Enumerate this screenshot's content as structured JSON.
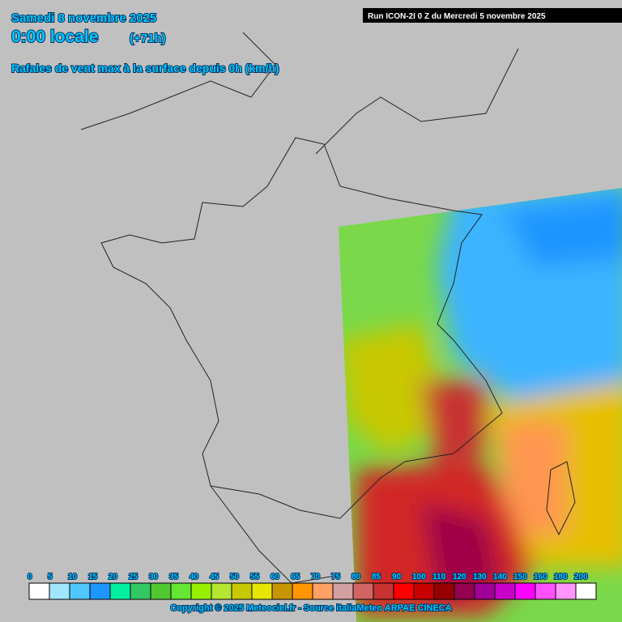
{
  "header": {
    "date": "Samedi 8 novembre 2025",
    "time": "0:00 locale",
    "lead": "(+71h)",
    "subtitle": "Rafales de vent max à la surface depuis 0h (km/h)",
    "run": "Run ICON-2I 0 Z du Mercredi 5 novembre 2025"
  },
  "legend": {
    "items": [
      {
        "label": "0",
        "color": "#ffffff"
      },
      {
        "label": "5",
        "color": "#a0e6ff"
      },
      {
        "label": "10",
        "color": "#50c8ff"
      },
      {
        "label": "15",
        "color": "#1e96ff"
      },
      {
        "label": "20",
        "color": "#00f0a0"
      },
      {
        "label": "25",
        "color": "#32c864"
      },
      {
        "label": "30",
        "color": "#50c832"
      },
      {
        "label": "35",
        "color": "#64e632"
      },
      {
        "label": "40",
        "color": "#96f000"
      },
      {
        "label": "45",
        "color": "#b4e632"
      },
      {
        "label": "50",
        "color": "#c8c800"
      },
      {
        "label": "55",
        "color": "#e6e600"
      },
      {
        "label": "60",
        "color": "#c89600"
      },
      {
        "label": "65",
        "color": "#ff9600"
      },
      {
        "label": "70",
        "color": "#ffa064"
      },
      {
        "label": "75",
        "color": "#d2a0a0"
      },
      {
        "label": "80",
        "color": "#d26464"
      },
      {
        "label": "85",
        "color": "#c83232"
      },
      {
        "label": "90",
        "color": "#ff0000"
      },
      {
        "label": "100",
        "color": "#c80000"
      },
      {
        "label": "110",
        "color": "#960000"
      },
      {
        "label": "120",
        "color": "#960050"
      },
      {
        "label": "130",
        "color": "#a00096"
      },
      {
        "label": "140",
        "color": "#c800c8"
      },
      {
        "label": "150",
        "color": "#ff00ff"
      },
      {
        "label": "160",
        "color": "#ff50ff"
      },
      {
        "label": "180",
        "color": "#ff96ff"
      },
      {
        "label": "200",
        "color": "#ffffff"
      }
    ]
  },
  "footer": {
    "copyright": "Copyright © 2025 Meteociel.fr - Source italiaMeteo ARPAE CINECA"
  }
}
